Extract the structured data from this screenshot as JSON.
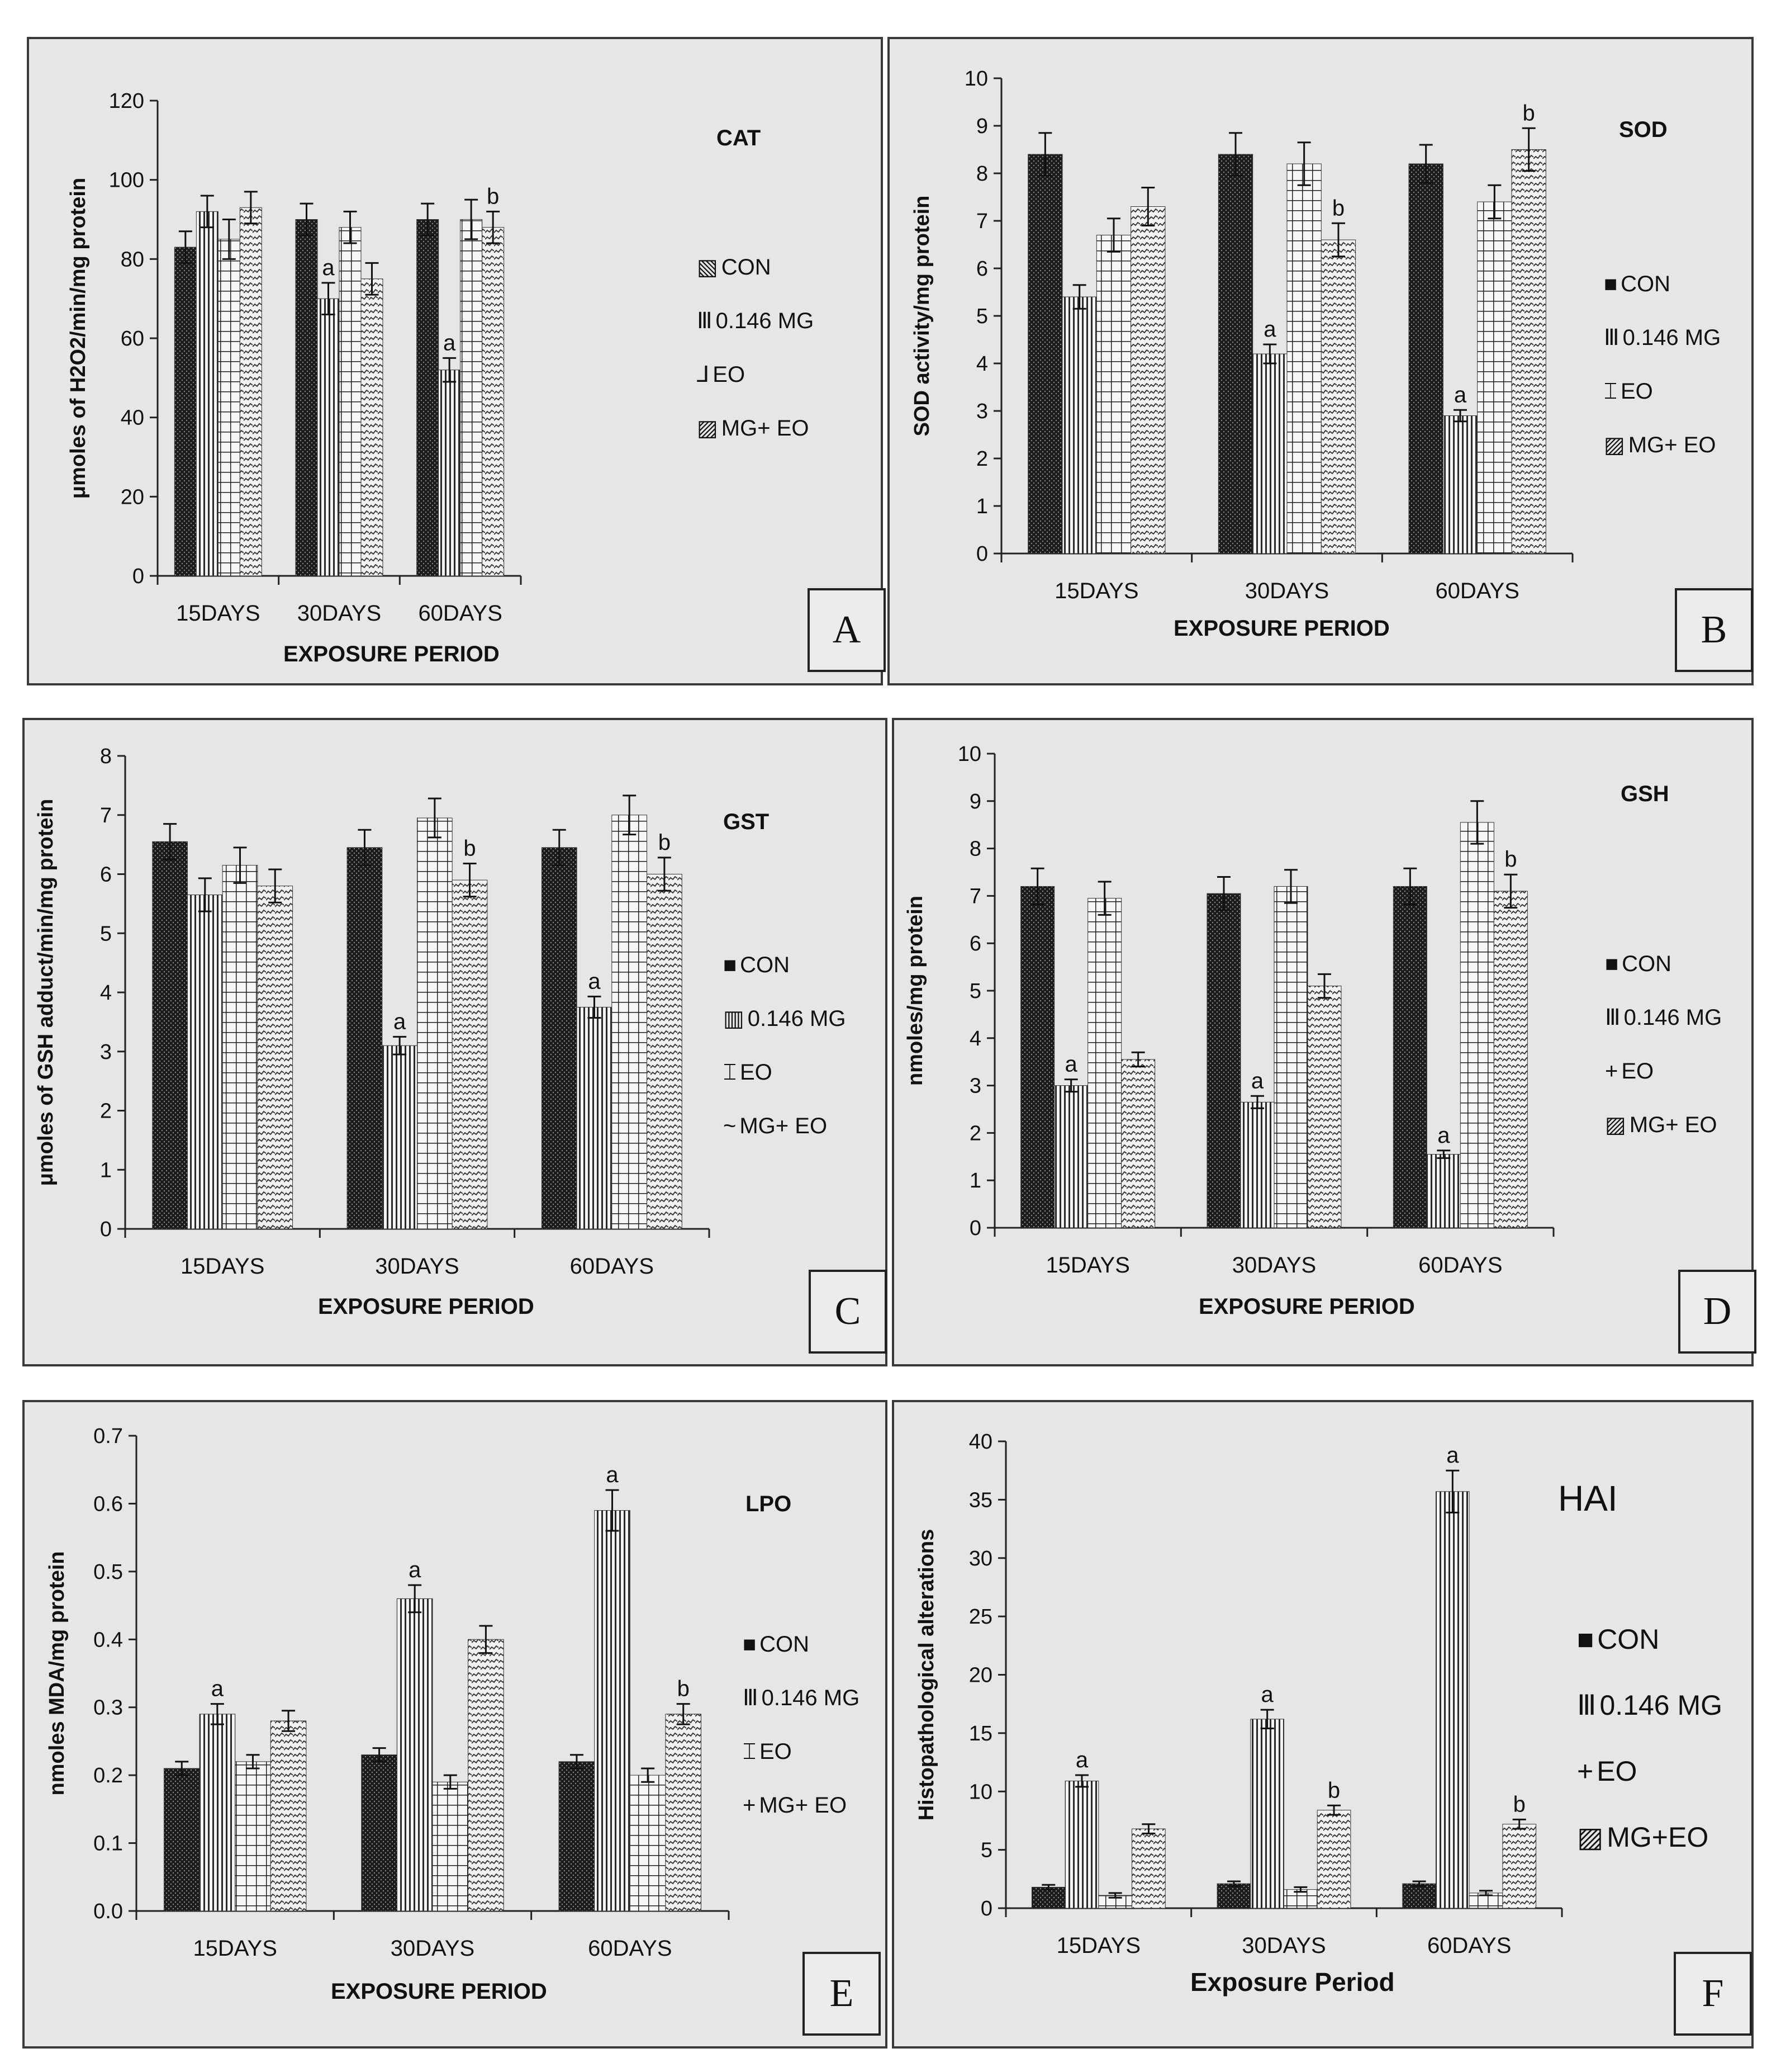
{
  "chart_data": [
    {
      "id": "A",
      "type": "bar",
      "title": "CAT",
      "ylabel": "μmoles of H2O2/min/mg protein",
      "xlabel": "EXPOSURE PERIOD",
      "ylim": [
        0,
        120
      ],
      "ytick_step": 20,
      "ytick_decimals": 0,
      "categories": [
        "15DAYS",
        "30DAYS",
        "60DAYS"
      ],
      "series": [
        {
          "name": "CON",
          "values": [
            83,
            90,
            90
          ],
          "errors": [
            4,
            4,
            4
          ],
          "labels": [
            "",
            "",
            ""
          ]
        },
        {
          "name": "0.146 MG",
          "values": [
            92,
            70,
            52
          ],
          "errors": [
            4,
            4,
            3
          ],
          "labels": [
            "",
            "a",
            "a"
          ]
        },
        {
          "name": "EO",
          "values": [
            85,
            88,
            90
          ],
          "errors": [
            5,
            4,
            5
          ],
          "labels": [
            "",
            "",
            ""
          ]
        },
        {
          "name": "MG+ EO",
          "values": [
            93,
            75,
            88
          ],
          "errors": [
            4,
            4,
            4
          ],
          "labels": [
            "",
            "",
            "b"
          ]
        }
      ]
    },
    {
      "id": "B",
      "type": "bar",
      "title": "SOD",
      "ylabel": "SOD activity/mg protein",
      "xlabel": "EXPOSURE PERIOD",
      "ylim": [
        0,
        10
      ],
      "ytick_step": 1,
      "ytick_decimals": 0,
      "categories": [
        "15DAYS",
        "30DAYS",
        "60DAYS"
      ],
      "series": [
        {
          "name": "CON",
          "values": [
            8.4,
            8.4,
            8.2
          ],
          "errors": [
            0.45,
            0.45,
            0.4
          ],
          "labels": [
            "",
            "",
            ""
          ]
        },
        {
          "name": "0.146 MG",
          "values": [
            5.4,
            4.2,
            2.9
          ],
          "errors": [
            0.25,
            0.2,
            0.12
          ],
          "labels": [
            "",
            "a",
            "a"
          ]
        },
        {
          "name": "EO",
          "values": [
            6.7,
            8.2,
            7.4
          ],
          "errors": [
            0.35,
            0.45,
            0.35
          ],
          "labels": [
            "",
            "",
            ""
          ]
        },
        {
          "name": "MG+ EO",
          "values": [
            7.3,
            6.6,
            8.5
          ],
          "errors": [
            0.4,
            0.35,
            0.45
          ],
          "labels": [
            "",
            "b",
            "b"
          ]
        }
      ]
    },
    {
      "id": "C",
      "type": "bar",
      "title": "GST",
      "ylabel": "μmoles of GSH adduct/min/mg protein",
      "xlabel": "EXPOSURE PERIOD",
      "ylim": [
        0,
        8
      ],
      "ytick_step": 1,
      "ytick_decimals": 0,
      "categories": [
        "15DAYS",
        "30DAYS",
        "60DAYS"
      ],
      "series": [
        {
          "name": "CON",
          "values": [
            6.55,
            6.45,
            6.45
          ],
          "errors": [
            0.3,
            0.3,
            0.3
          ],
          "labels": [
            "",
            "",
            ""
          ]
        },
        {
          "name": "0.146 MG",
          "values": [
            5.65,
            3.1,
            3.75
          ],
          "errors": [
            0.28,
            0.15,
            0.18
          ],
          "labels": [
            "",
            "a",
            "a"
          ]
        },
        {
          "name": "EO",
          "values": [
            6.15,
            6.95,
            7.0
          ],
          "errors": [
            0.3,
            0.33,
            0.33
          ],
          "labels": [
            "",
            "",
            ""
          ]
        },
        {
          "name": "MG+ EO",
          "values": [
            5.8,
            5.9,
            6.0
          ],
          "errors": [
            0.28,
            0.28,
            0.28
          ],
          "labels": [
            "",
            "b",
            "b"
          ]
        }
      ]
    },
    {
      "id": "D",
      "type": "bar",
      "title": "GSH",
      "ylabel": "nmoles/mg protein",
      "xlabel": "EXPOSURE PERIOD",
      "ylim": [
        0,
        10
      ],
      "ytick_step": 1,
      "ytick_decimals": 0,
      "categories": [
        "15DAYS",
        "30DAYS",
        "60DAYS"
      ],
      "series": [
        {
          "name": "CON",
          "values": [
            7.2,
            7.05,
            7.2
          ],
          "errors": [
            0.38,
            0.35,
            0.38
          ],
          "labels": [
            "",
            "",
            ""
          ]
        },
        {
          "name": "0.146 MG",
          "values": [
            3.0,
            2.65,
            1.55
          ],
          "errors": [
            0.13,
            0.13,
            0.08
          ],
          "labels": [
            "a",
            "a",
            "a"
          ]
        },
        {
          "name": "EO",
          "values": [
            6.95,
            7.2,
            8.55
          ],
          "errors": [
            0.35,
            0.35,
            0.45
          ],
          "labels": [
            "",
            "",
            ""
          ]
        },
        {
          "name": "MG+ EO",
          "values": [
            3.55,
            5.1,
            7.1
          ],
          "errors": [
            0.15,
            0.25,
            0.35
          ],
          "labels": [
            "",
            "",
            "b"
          ]
        }
      ]
    },
    {
      "id": "E",
      "type": "bar",
      "title": "LPO",
      "ylabel": "nmoles MDA/mg protein",
      "xlabel": "EXPOSURE PERIOD",
      "ylim": [
        0,
        0.7
      ],
      "ytick_step": 0.1,
      "ytick_decimals": 1,
      "categories": [
        "15DAYS",
        "30DAYS",
        "60DAYS"
      ],
      "series": [
        {
          "name": "CON",
          "values": [
            0.21,
            0.23,
            0.22
          ],
          "errors": [
            0.01,
            0.01,
            0.01
          ],
          "labels": [
            "",
            "",
            ""
          ]
        },
        {
          "name": "0.146 MG",
          "values": [
            0.29,
            0.46,
            0.59
          ],
          "errors": [
            0.015,
            0.02,
            0.03
          ],
          "labels": [
            "a",
            "a",
            "a"
          ]
        },
        {
          "name": "EO",
          "values": [
            0.22,
            0.19,
            0.2
          ],
          "errors": [
            0.01,
            0.01,
            0.01
          ],
          "labels": [
            "",
            "",
            ""
          ]
        },
        {
          "name": "MG+ EO",
          "values": [
            0.28,
            0.4,
            0.29
          ],
          "errors": [
            0.015,
            0.02,
            0.015
          ],
          "labels": [
            "",
            "",
            "b"
          ]
        }
      ]
    },
    {
      "id": "F",
      "type": "bar",
      "title": "HAI",
      "ylabel": "Histopathological alterations",
      "xlabel": "Exposure Period",
      "ylim": [
        0,
        40
      ],
      "ytick_step": 5,
      "ytick_decimals": 0,
      "categories": [
        "15DAYS",
        "30DAYS",
        "60DAYS"
      ],
      "series": [
        {
          "name": "CON",
          "values": [
            1.8,
            2.1,
            2.1
          ],
          "errors": [
            0.2,
            0.2,
            0.2
          ],
          "labels": [
            "",
            "",
            ""
          ]
        },
        {
          "name": "0.146 MG",
          "values": [
            10.9,
            16.2,
            35.7
          ],
          "errors": [
            0.5,
            0.8,
            1.8
          ],
          "labels": [
            "a",
            "a",
            "a"
          ]
        },
        {
          "name": "EO",
          "values": [
            1.1,
            1.6,
            1.3
          ],
          "errors": [
            0.2,
            0.2,
            0.2
          ],
          "labels": [
            "",
            "",
            ""
          ]
        },
        {
          "name": "MG+EO",
          "values": [
            6.8,
            8.4,
            7.2
          ],
          "errors": [
            0.4,
            0.4,
            0.4
          ],
          "labels": [
            "",
            "b",
            "b"
          ]
        }
      ]
    }
  ],
  "legend_markers": {
    "A": [
      "▧",
      "Ⅲ",
      "⅃",
      "▨"
    ],
    "B": [
      "■",
      "Ⅲ",
      "⌶",
      "▨"
    ],
    "C": [
      "■",
      "▥",
      "⌶",
      "~"
    ],
    "D": [
      "■",
      "Ⅲ",
      "+",
      "▨"
    ],
    "E": [
      "■",
      "Ⅲ",
      "⌶",
      "+"
    ],
    "F": [
      "■",
      "Ⅲ",
      "+",
      "▨"
    ]
  },
  "colors": {
    "panel_bg": "#e6e6e6",
    "bar_dark": "#1a1a1a",
    "axis": "#222222"
  }
}
